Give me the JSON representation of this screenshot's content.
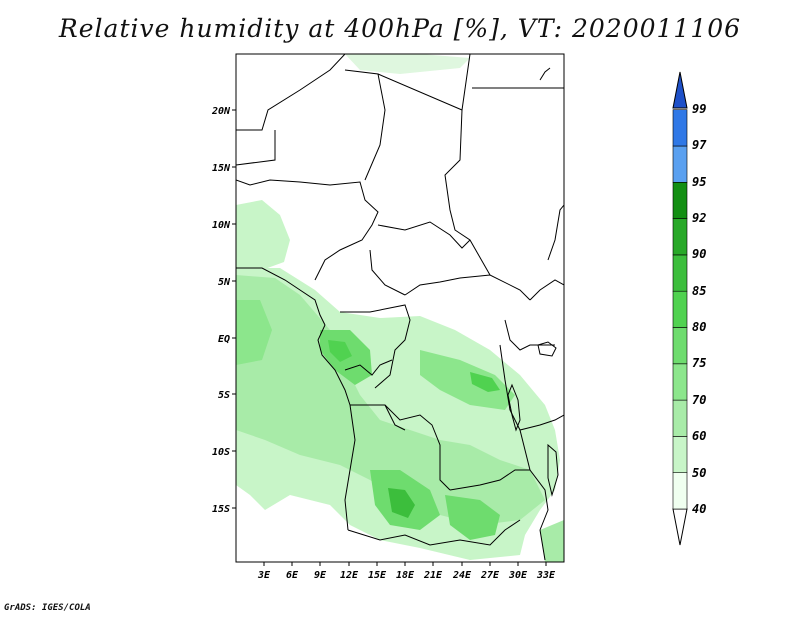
{
  "title": "Relative humidity at 400hPa [%], VT: 2020011106",
  "credit": "GrADS: IGES/COLA",
  "map": {
    "lat_labels": [
      "20N",
      "15N",
      "10N",
      "5N",
      "EQ",
      "5S",
      "10S",
      "15S"
    ],
    "lon_labels": [
      "3E",
      "6E",
      "9E",
      "12E",
      "15E",
      "18E",
      "21E",
      "24E",
      "27E",
      "30E",
      "33E"
    ],
    "lat_range": [
      -19.5,
      24.5
    ],
    "lon_range": [
      0,
      34.5
    ]
  },
  "colorbar": {
    "levels": [
      "40",
      "50",
      "60",
      "70",
      "75",
      "80",
      "85",
      "90",
      "92",
      "95",
      "97",
      "99"
    ],
    "colors": [
      "#f0fff0",
      "#c8f5c8",
      "#a8eba8",
      "#8ce68c",
      "#6edc6e",
      "#50d250",
      "#3cbe3c",
      "#28a828",
      "#138f13",
      "#5aa0f0",
      "#2f78e6",
      "#1e50c8"
    ]
  }
}
